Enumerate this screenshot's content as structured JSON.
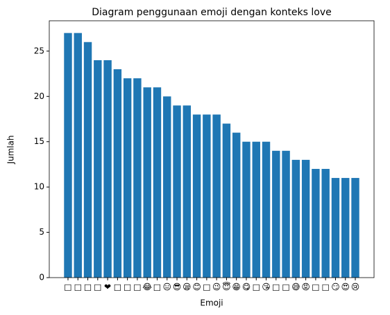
{
  "chart_data": {
    "type": "bar",
    "title": "Diagram penggunaan emoji dengan konteks love",
    "x_label": "Emoji",
    "y_label": "Jumlah",
    "categories": [
      "□",
      "□",
      "□",
      "□",
      "❤",
      "□",
      "□",
      "□",
      "😂",
      "□",
      "😑",
      "😎",
      "😪",
      "😊",
      "□",
      "😉",
      "😇",
      "😁",
      "😋",
      "□",
      "😘",
      "□",
      "□",
      "😅",
      "😡",
      "□",
      "□",
      "😏",
      "😍",
      "😢"
    ],
    "values": [
      27,
      27,
      26,
      24,
      24,
      23,
      22,
      22,
      21,
      21,
      20,
      19,
      19,
      18,
      18,
      18,
      17,
      16,
      15,
      15,
      15,
      14,
      14,
      13,
      13,
      12,
      12,
      11,
      11,
      11
    ],
    "color": "#1f77b4",
    "ylim": [
      0,
      28.35
    ],
    "yticks": [
      0,
      5,
      10,
      15,
      20,
      25
    ],
    "grid": false
  }
}
